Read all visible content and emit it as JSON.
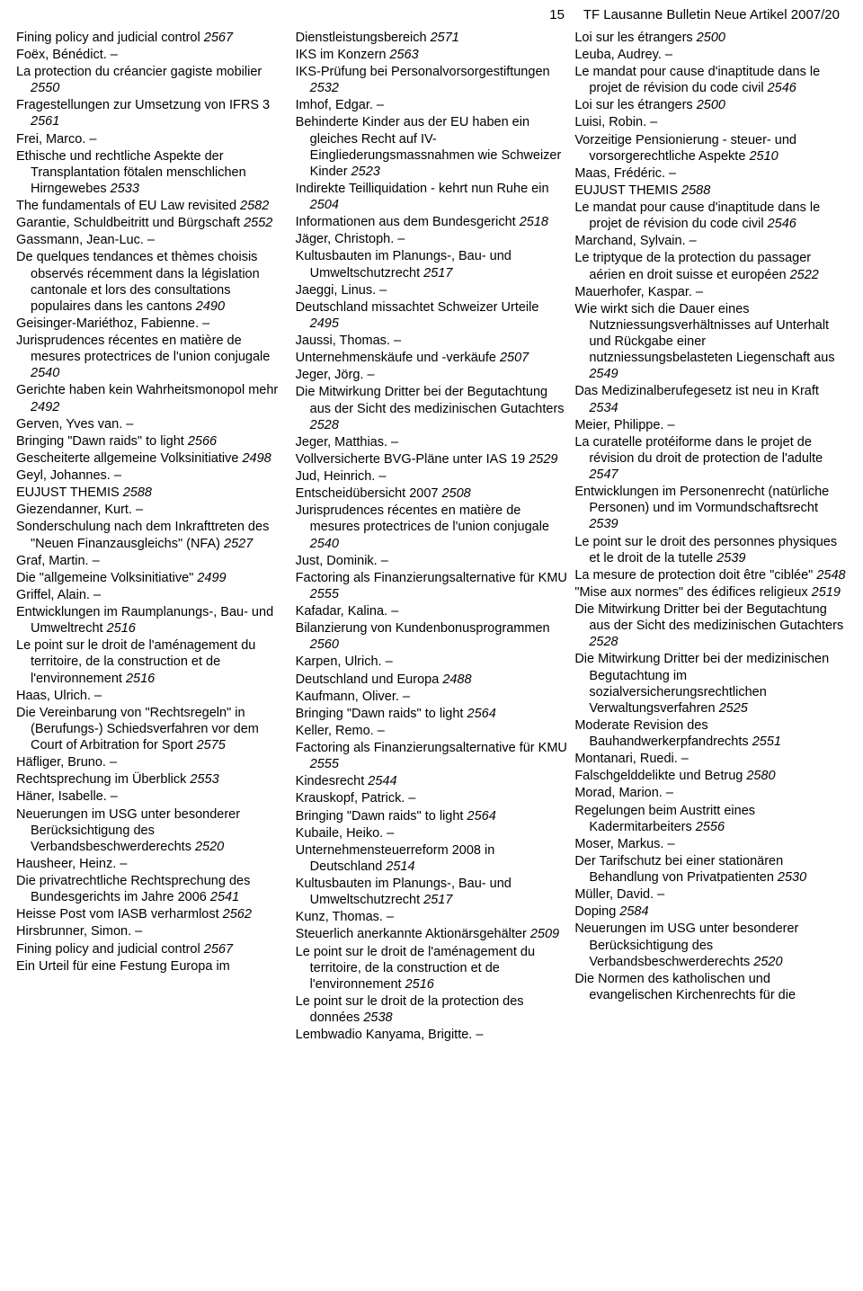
{
  "header": {
    "page_number": "15",
    "title": "TF Lausanne Bulletin Neue Artikel 2007/20"
  },
  "font": {
    "body_size_pt": 11,
    "italic_weight": "normal"
  },
  "colors": {
    "background": "#ffffff",
    "text": "#000000"
  },
  "columns": [
    [
      {
        "a": "",
        "t": "Fining policy and judicial control ",
        "r": "2567"
      },
      {
        "a": "Foëx, Bénédict. – ",
        "t": "",
        "r": ""
      },
      {
        "a": "",
        "t": "La protection du créancier gagiste mobilier ",
        "r": "2550"
      },
      {
        "a": "",
        "t": "Fragestellungen zur Umsetzung von IFRS 3 ",
        "r": "2561"
      },
      {
        "a": "Frei, Marco. – ",
        "t": "",
        "r": ""
      },
      {
        "a": "",
        "t": "Ethische und rechtliche Aspekte der Transplantation fötalen menschlichen Hirngewebes ",
        "r": "2533"
      },
      {
        "a": "",
        "t": "The fundamentals of EU Law revisited ",
        "r": "2582"
      },
      {
        "a": "",
        "t": "Garantie, Schuldbeitritt und Bürgschaft ",
        "r": "2552"
      },
      {
        "a": "Gassmann, Jean-Luc. – ",
        "t": "",
        "r": ""
      },
      {
        "a": "",
        "t": "De quelques tendances et thèmes choisis observés récemment dans la législation cantonale et lors des consultations populaires dans les cantons ",
        "r": "2490"
      },
      {
        "a": "Geisinger-Mariéthoz, Fabienne. – ",
        "t": "",
        "r": ""
      },
      {
        "a": "",
        "t": "Jurisprudences récentes en matière de mesures protectrices de l'union conjugale ",
        "r": "2540"
      },
      {
        "a": "",
        "t": "Gerichte haben kein Wahrheitsmonopol mehr ",
        "r": "2492"
      },
      {
        "a": "Gerven, Yves van. – ",
        "t": "",
        "r": ""
      },
      {
        "a": "",
        "t": "Bringing \"Dawn raids\" to  light ",
        "r": "2566"
      },
      {
        "a": "",
        "t": "Gescheiterte allgemeine Volksinitiative ",
        "r": "2498"
      },
      {
        "a": "Geyl, Johannes. – ",
        "t": "",
        "r": ""
      },
      {
        "a": "",
        "t": "EUJUST THEMIS ",
        "r": "2588"
      },
      {
        "a": "Giezendanner, Kurt. – ",
        "t": "",
        "r": ""
      },
      {
        "a": "",
        "t": "Sonderschulung nach dem Inkrafttreten des \"Neuen Finanzausgleichs\" (NFA) ",
        "r": "2527"
      },
      {
        "a": "Graf, Martin. – ",
        "t": "",
        "r": ""
      },
      {
        "a": "",
        "t": "Die \"allgemeine Volksinitiative\" ",
        "r": "2499"
      },
      {
        "a": "Griffel, Alain. – ",
        "t": "",
        "r": ""
      },
      {
        "a": "",
        "t": "Entwicklungen im Raumplanungs-, Bau- und Umweltrecht ",
        "r": "2516"
      },
      {
        "a": "",
        "t": "Le point sur le droit de l'aménagement du territoire, de la construction et de l'environnement ",
        "r": "2516"
      },
      {
        "a": "Haas, Ulrich. – ",
        "t": "",
        "r": ""
      },
      {
        "a": "",
        "t": "Die Vereinbarung von \"Rechtsregeln\" in (Berufungs-) Schiedsverfahren vor dem Court of Arbitration for Sport ",
        "r": "2575"
      },
      {
        "a": "Häfliger, Bruno. – ",
        "t": "",
        "r": ""
      },
      {
        "a": "",
        "t": "Rechtsprechung im Überblick ",
        "r": "2553"
      },
      {
        "a": "Häner, Isabelle. – ",
        "t": "",
        "r": ""
      },
      {
        "a": "",
        "t": "Neuerungen im USG unter besonderer Berücksichtigung des Verbandsbeschwerderechts ",
        "r": "2520"
      },
      {
        "a": "Hausheer, Heinz. – ",
        "t": "",
        "r": ""
      },
      {
        "a": "",
        "t": "Die privatrechtliche Rechtsprechung des Bundesgerichts im Jahre 2006 ",
        "r": "2541"
      },
      {
        "a": "",
        "t": "Heisse Post vom IASB verharmlost ",
        "r": "2562"
      },
      {
        "a": "Hirsbrunner, Simon. – ",
        "t": "",
        "r": ""
      },
      {
        "a": "",
        "t": "Fining policy and judicial control ",
        "r": "2567"
      },
      {
        "a": "",
        "t": "Ein Urteil für eine Festung Europa im ",
        "r": ""
      }
    ],
    [
      {
        "a": "",
        "t": "Dienstleistungsbereich ",
        "r": "2571"
      },
      {
        "a": "",
        "t": "IKS im Konzern ",
        "r": "2563"
      },
      {
        "a": "",
        "t": "IKS-Prüfung bei Personalvorsorgestiftungen ",
        "r": "2532"
      },
      {
        "a": "Imhof, Edgar. – ",
        "t": "",
        "r": ""
      },
      {
        "a": "",
        "t": "Behinderte Kinder aus der EU haben ein gleiches Recht auf IV-Eingliederungsmassnahmen wie Schweizer Kinder ",
        "r": "2523"
      },
      {
        "a": "",
        "t": "Indirekte Teilliquidation - kehrt nun Ruhe ein ",
        "r": "2504"
      },
      {
        "a": "",
        "t": "Informationen aus dem Bundesgericht ",
        "r": "2518"
      },
      {
        "a": "Jäger, Christoph. – ",
        "t": "",
        "r": ""
      },
      {
        "a": "",
        "t": "Kultusbauten im Planungs-, Bau- und Umweltschutzrecht ",
        "r": "2517"
      },
      {
        "a": "Jaeggi, Linus. – ",
        "t": "",
        "r": ""
      },
      {
        "a": "",
        "t": "Deutschland missachtet Schweizer Urteile ",
        "r": "2495"
      },
      {
        "a": "Jaussi, Thomas. – ",
        "t": "",
        "r": ""
      },
      {
        "a": "",
        "t": "Unternehmenskäufe und -verkäufe ",
        "r": "2507"
      },
      {
        "a": "Jeger, Jörg. – ",
        "t": "",
        "r": ""
      },
      {
        "a": "",
        "t": "Die Mitwirkung Dritter bei der Begutachtung aus der Sicht des medizinischen Gutachters ",
        "r": "2528"
      },
      {
        "a": "Jeger, Matthias. – ",
        "t": "",
        "r": ""
      },
      {
        "a": "",
        "t": "Vollversicherte BVG-Pläne unter IAS 19 ",
        "r": "2529"
      },
      {
        "a": "Jud, Heinrich. – ",
        "t": "",
        "r": ""
      },
      {
        "a": "",
        "t": "Entscheidübersicht 2007 ",
        "r": "2508"
      },
      {
        "a": "",
        "t": "Jurisprudences récentes en matière de mesures protectrices de l'union conjugale ",
        "r": "2540"
      },
      {
        "a": "Just, Dominik. – ",
        "t": "",
        "r": ""
      },
      {
        "a": "",
        "t": "Factoring als Finanzierungsalternative für KMU ",
        "r": "2555"
      },
      {
        "a": "Kafadar, Kalina. – ",
        "t": "",
        "r": ""
      },
      {
        "a": "",
        "t": "Bilanzierung von Kundenbonusprogrammen ",
        "r": "2560"
      },
      {
        "a": "Karpen, Ulrich. – ",
        "t": "",
        "r": ""
      },
      {
        "a": "",
        "t": "Deutschland und Europa ",
        "r": "2488"
      },
      {
        "a": "Kaufmann, Oliver. – ",
        "t": "",
        "r": ""
      },
      {
        "a": "",
        "t": "Bringing \"Dawn raids\" to light ",
        "r": "2564"
      },
      {
        "a": "Keller, Remo. – ",
        "t": "",
        "r": ""
      },
      {
        "a": "",
        "t": "Factoring als Finanzierungsalternative für KMU ",
        "r": "2555"
      },
      {
        "a": "",
        "t": "Kindesrecht ",
        "r": "2544"
      },
      {
        "a": "Krauskopf, Patrick. – ",
        "t": "",
        "r": ""
      },
      {
        "a": "",
        "t": "Bringing \"Dawn raids\" to light ",
        "r": "2564"
      },
      {
        "a": "Kubaile, Heiko. – ",
        "t": "",
        "r": ""
      },
      {
        "a": "",
        "t": "Unternehmensteuerreform 2008 in Deutschland ",
        "r": "2514"
      },
      {
        "a": "",
        "t": "Kultusbauten im Planungs-, Bau- und Umweltschutzrecht ",
        "r": "2517"
      },
      {
        "a": "Kunz, Thomas. – ",
        "t": "",
        "r": ""
      },
      {
        "a": "",
        "t": "Steuerlich anerkannte Aktionärsgehälter ",
        "r": "2509"
      },
      {
        "a": "",
        "t": "Le point sur le droit de l'aménagement du territoire, de la construction et de l'environnement ",
        "r": "2516"
      },
      {
        "a": "",
        "t": "Le point sur le droit de la protection des données ",
        "r": "2538"
      },
      {
        "a": "Lembwadio Kanyama, Brigitte. – ",
        "t": "",
        "r": ""
      }
    ],
    [
      {
        "a": "",
        "t": "Loi sur les étrangers ",
        "r": "2500"
      },
      {
        "a": "Leuba, Audrey. – ",
        "t": "",
        "r": ""
      },
      {
        "a": "",
        "t": "Le mandat pour cause d'inaptitude dans le projet de révision du code civil ",
        "r": "2546"
      },
      {
        "a": "",
        "t": "Loi sur les étrangers ",
        "r": "2500"
      },
      {
        "a": "Luisi, Robin. – ",
        "t": "",
        "r": ""
      },
      {
        "a": "",
        "t": "Vorzeitige Pensionierung - steuer- und vorsorgerechtliche Aspekte ",
        "r": "2510"
      },
      {
        "a": "Maas, Frédéric. – ",
        "t": "",
        "r": ""
      },
      {
        "a": "",
        "t": "EUJUST THEMIS ",
        "r": "2588"
      },
      {
        "a": "",
        "t": "Le mandat pour cause d'inaptitude dans le projet de révision du code civil ",
        "r": "2546"
      },
      {
        "a": "Marchand, Sylvain. – ",
        "t": "",
        "r": ""
      },
      {
        "a": "",
        "t": "Le triptyque de la protection du passager aérien en droit suisse et européen ",
        "r": "2522"
      },
      {
        "a": "Mauerhofer, Kaspar. – ",
        "t": "",
        "r": ""
      },
      {
        "a": "",
        "t": "Wie wirkt sich die Dauer eines Nutzniessungsverhältnisses auf Unterhalt und Rückgabe einer nutzniessungsbelasteten Liegenschaft aus ",
        "r": "2549"
      },
      {
        "a": "",
        "t": "Das Medizinalberufegesetz ist neu in Kraft ",
        "r": "2534"
      },
      {
        "a": "Meier, Philippe. – ",
        "t": "",
        "r": ""
      },
      {
        "a": "",
        "t": "La curatelle protéiforme dans le projet de révision du droit de protection de l'adulte ",
        "r": "2547"
      },
      {
        "a": "",
        "t": "Entwicklungen im Personenrecht (natürliche Personen) und im Vormundschaftsrecht ",
        "r": "2539"
      },
      {
        "a": "",
        "t": "Le point sur le droit des personnes physiques et le droit de la tutelle ",
        "r": "2539"
      },
      {
        "a": "",
        "t": "La mesure de protection doit être \"ciblée\" ",
        "r": "2548"
      },
      {
        "a": "",
        "t": "\"Mise aux normes\" des édifices religieux ",
        "r": "2519"
      },
      {
        "a": "",
        "t": "Die Mitwirkung Dritter bei der Begutachtung aus der Sicht des medizinischen Gutachters ",
        "r": "2528"
      },
      {
        "a": "",
        "t": "Die Mitwirkung Dritter bei der medizinischen Begutachtung im sozialversicherungsrechtlichen Verwaltungsverfahren ",
        "r": "2525"
      },
      {
        "a": "",
        "t": "Moderate Revision des Bauhandwerkerpfandrechts ",
        "r": "2551"
      },
      {
        "a": "Montanari, Ruedi. – ",
        "t": "",
        "r": ""
      },
      {
        "a": "",
        "t": "Falschgelddelikte und Betrug ",
        "r": "2580"
      },
      {
        "a": "Morad, Marion. – ",
        "t": "",
        "r": ""
      },
      {
        "a": "",
        "t": "Regelungen beim Austritt eines Kadermitarbeiters ",
        "r": "2556"
      },
      {
        "a": "Moser, Markus. – ",
        "t": "",
        "r": ""
      },
      {
        "a": "",
        "t": "Der Tarifschutz bei einer stationären Behandlung von Privatpatienten ",
        "r": "2530"
      },
      {
        "a": "Müller, David. – ",
        "t": "",
        "r": ""
      },
      {
        "a": "",
        "t": "Doping ",
        "r": "2584"
      },
      {
        "a": "",
        "t": "Neuerungen im USG unter besonderer Berücksichtigung des Verbandsbeschwerderechts ",
        "r": "2520"
      },
      {
        "a": "",
        "t": "Die Normen des katholischen und evangelischen Kirchenrechts für die ",
        "r": ""
      }
    ]
  ]
}
